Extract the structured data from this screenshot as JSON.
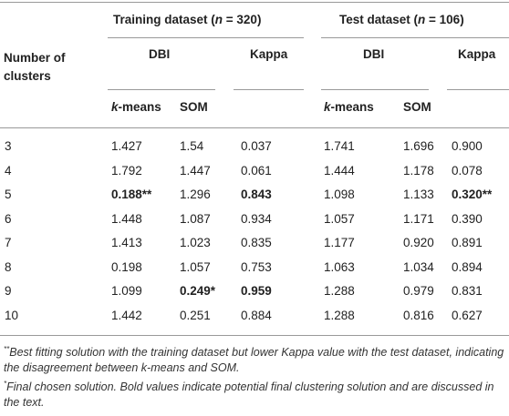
{
  "table": {
    "header": {
      "training": {
        "prefix": "Training dataset (",
        "italic": "n",
        "suffix": " = 320)"
      },
      "test": {
        "prefix": "Test dataset (",
        "italic": "n",
        "suffix": " = 106)"
      },
      "row_label": "Number of clusters",
      "dbi_training": "DBI",
      "kappa_training": "Kappa",
      "dbi_test": "DBI",
      "kappa_test": "Kappa",
      "kmeans_training": {
        "italic": "k",
        "rest": "-means"
      },
      "som_training": "SOM",
      "kmeans_test": {
        "italic": "k",
        "rest": "-means"
      },
      "som_test": "SOM"
    },
    "rows": [
      [
        "3",
        "1.427",
        "1.54",
        "0.037",
        "1.741",
        "1.696",
        "0.900"
      ],
      [
        "4",
        "1.792",
        "1.447",
        "0.061",
        "1.444",
        "1.178",
        "0.078"
      ],
      [
        "5",
        {
          "text": "0.188**",
          "bold": true
        },
        "1.296",
        {
          "text": "0.843",
          "bold": true
        },
        "1.098",
        "1.133",
        {
          "text": "0.320**",
          "bold": true
        }
      ],
      [
        "6",
        "1.448",
        "1.087",
        "0.934",
        "1.057",
        "1.171",
        "0.390"
      ],
      [
        "7",
        "1.413",
        "1.023",
        "0.835",
        "1.177",
        "0.920",
        "0.891"
      ],
      [
        "8",
        "0.198",
        "1.057",
        "0.753",
        "1.063",
        "1.034",
        "0.894"
      ],
      [
        "9",
        "1.099",
        {
          "text": "0.249*",
          "bold": true
        },
        {
          "text": "0.959",
          "bold": true
        },
        "1.288",
        "0.979",
        "0.831"
      ],
      [
        "10",
        "1.442",
        "0.251",
        "0.884",
        "1.288",
        "0.816",
        "0.627"
      ]
    ],
    "footnotes": [
      {
        "mark": "**",
        "text": "Best fitting solution with the training dataset but lower Kappa value with the test dataset, indicating the disagreement between k-means and SOM."
      },
      {
        "mark": "*",
        "text": "Final chosen solution. Bold values indicate potential final clustering solution and are discussed in the text."
      }
    ]
  }
}
